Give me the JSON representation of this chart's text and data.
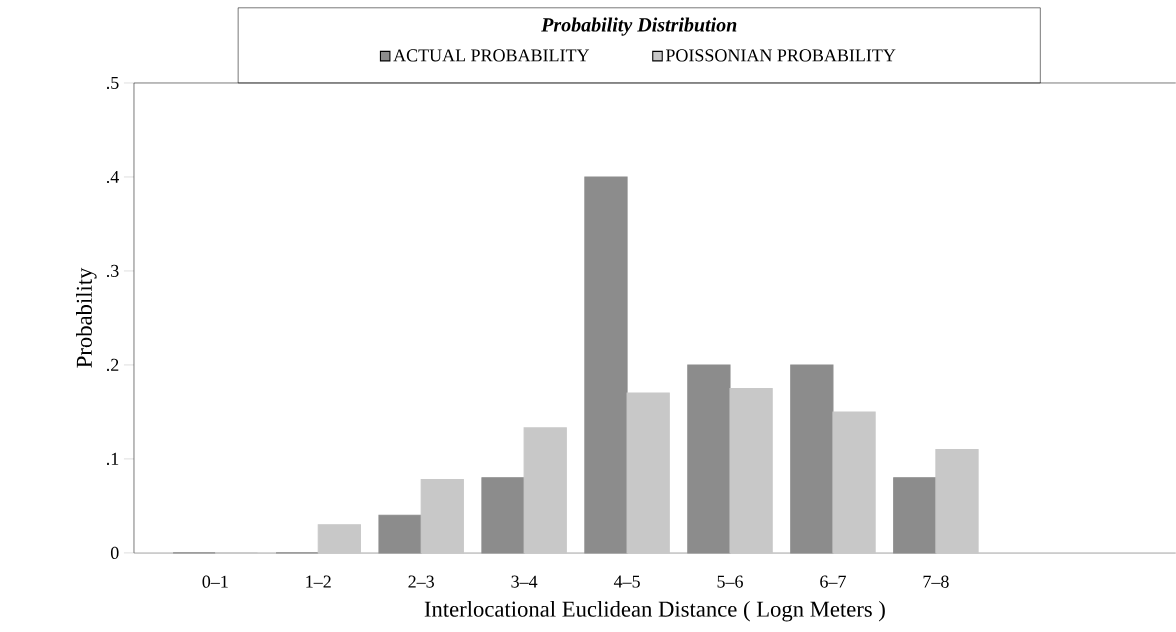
{
  "chart_data": {
    "type": "bar",
    "title": "Probability Distribution",
    "xlabel": "Interlocational Euclidean Distance ( Logn Meters )",
    "ylabel": "Probability",
    "categories": [
      "0–1",
      "1–2",
      "2–3",
      "3–4",
      "4–5",
      "5–6",
      "6–7",
      "7–8"
    ],
    "series": [
      {
        "name": "ACTUAL PROBABILITY",
        "color": "#8c8c8c",
        "values": [
          0,
          0,
          0.04,
          0.08,
          0.4,
          0.2,
          0.2,
          0.08
        ]
      },
      {
        "name": "POISSONIAN PROBABILITY",
        "color": "#c8c8c8",
        "values": [
          0,
          0.03,
          0.078,
          0.133,
          0.17,
          0.175,
          0.15,
          0.11
        ]
      }
    ],
    "ylim": [
      0,
      0.5
    ],
    "yticks": [
      0,
      {
        "value": 0.1,
        "label": ".1"
      },
      {
        "value": 0.2,
        "label": ".2"
      },
      {
        "value": 0.3,
        "label": ".3"
      },
      {
        "value": 0.4,
        "label": ".4"
      },
      {
        "value": 0.5,
        "label": ".5"
      }
    ],
    "legend": "top",
    "grid": false
  }
}
